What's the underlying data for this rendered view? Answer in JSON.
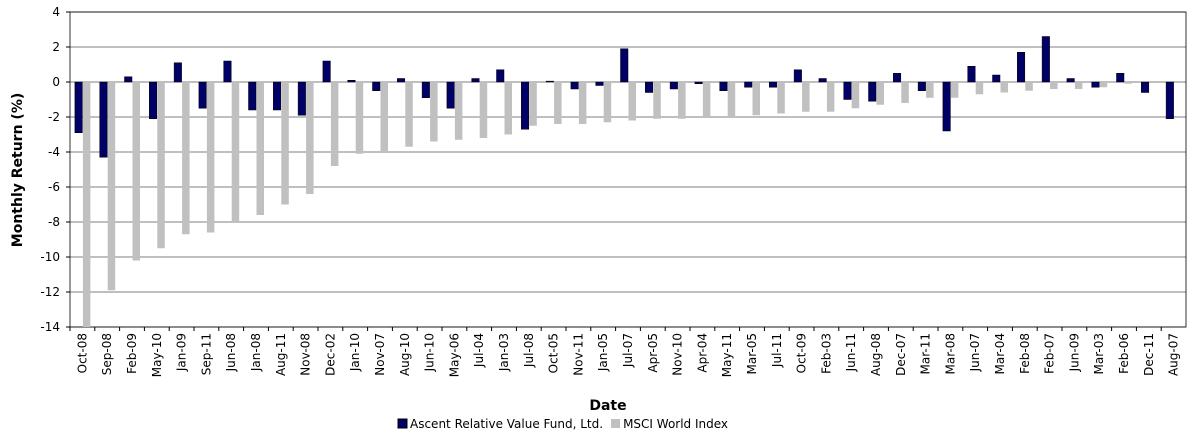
{
  "chart_data": {
    "type": "bar",
    "x_label": "Date",
    "y_label": "Monthly Return (%)",
    "categories": [
      "Oct-08",
      "Sep-08",
      "Feb-09",
      "May-10",
      "Jan-09",
      "Sep-11",
      "Jun-08",
      "Jan-08",
      "Aug-11",
      "Nov-08",
      "Dec-02",
      "Jan-10",
      "Nov-07",
      "Aug-10",
      "Jun-10",
      "May-06",
      "Jul-04",
      "Jan-03",
      "Jul-08",
      "Oct-05",
      "Nov-11",
      "Jan-05",
      "Jul-07",
      "Apr-05",
      "Nov-10",
      "Apr-04",
      "May-11",
      "Mar-05",
      "Jul-11",
      "Oct-09",
      "Feb-03",
      "Jun-11",
      "Aug-08",
      "Dec-07",
      "Mar-11",
      "Mar-08",
      "Jun-07",
      "Mar-04",
      "Feb-08",
      "Feb-07",
      "Jun-09",
      "Mar-03",
      "Feb-06",
      "Dec-11",
      "Aug-07"
    ],
    "series": [
      {
        "name": "Ascent Relative Value Fund, Ltd.",
        "color": "#000066",
        "values": [
          -2.9,
          -4.3,
          0.3,
          -2.1,
          1.1,
          -1.5,
          1.2,
          -1.6,
          -1.6,
          -1.9,
          1.2,
          0.1,
          -0.5,
          0.2,
          -0.9,
          -1.5,
          0.2,
          0.7,
          -2.7,
          0.05,
          -0.4,
          -0.2,
          1.9,
          -0.6,
          -0.4,
          -0.1,
          -0.5,
          -0.3,
          -0.3,
          0.7,
          0.2,
          -1.0,
          -1.1,
          0.5,
          -0.5,
          -2.8,
          0.9,
          0.4,
          1.7,
          2.6,
          0.2,
          -0.3,
          0.5,
          -0.6,
          -2.1
        ]
      },
      {
        "name": "MSCI World Index",
        "color": "#c0c0c0",
        "values": [
          -14.0,
          -11.9,
          -10.2,
          -9.5,
          -8.7,
          -8.6,
          -8.0,
          -7.6,
          -7.0,
          -6.4,
          -4.8,
          -4.1,
          -4.0,
          -3.7,
          -3.4,
          -3.3,
          -3.2,
          -3.0,
          -2.5,
          -2.4,
          -2.4,
          -2.3,
          -2.2,
          -2.1,
          -2.1,
          -2.0,
          -2.0,
          -1.9,
          -1.8,
          -1.7,
          -1.7,
          -1.5,
          -1.3,
          -1.2,
          -0.9,
          -0.9,
          -0.7,
          -0.6,
          -0.5,
          -0.4,
          -0.4,
          -0.3,
          -0.1,
          0,
          0
        ]
      }
    ],
    "ylim": [
      -14,
      4
    ],
    "yticks": [
      -14,
      -12,
      -10,
      -8,
      -6,
      -4,
      -2,
      0,
      2,
      4
    ],
    "grid": true,
    "legend": "bottom"
  }
}
